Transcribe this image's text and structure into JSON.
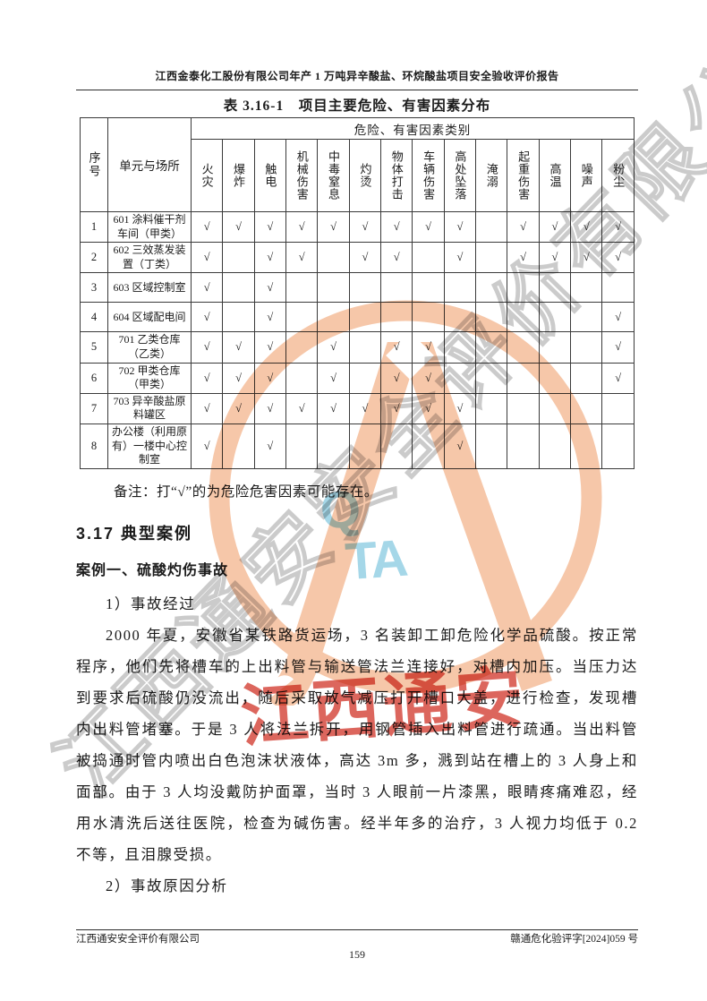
{
  "page": {
    "header_title": "江西金泰化工股份有限公司年产 1 万吨异辛酸盐、环烷酸盐项目安全验收评价报告",
    "footer_company": "江西通安安全评价有限公司",
    "footer_doc_number": "赣通危化验评字[2024]059 号",
    "page_number": "159"
  },
  "table": {
    "title": "表 3.16-1　项目主要危险、有害因素分布",
    "col_no_label": "序号",
    "col_unit_label": "单元与场所",
    "group_header": "危险、有害因素类别",
    "check_mark": "√",
    "hazard_columns": [
      "火灾",
      "爆炸",
      "触电",
      "机械伤害",
      "中毒窒息",
      "灼烫",
      "物体打击",
      "车辆伤害",
      "高处坠落",
      "淹溺",
      "起重伤害",
      "高温",
      "噪声",
      "粉尘"
    ],
    "rows": [
      {
        "no": "1",
        "unit": "601 涂料催干剂车间（甲类）",
        "checks": [
          1,
          1,
          1,
          1,
          1,
          1,
          1,
          1,
          1,
          0,
          1,
          1,
          1,
          1
        ]
      },
      {
        "no": "2",
        "unit": "602 三效蒸发装置（丁类）",
        "checks": [
          1,
          0,
          1,
          1,
          0,
          1,
          1,
          0,
          1,
          0,
          1,
          1,
          1,
          1
        ]
      },
      {
        "no": "3",
        "unit": "603 区域控制室",
        "checks": [
          1,
          0,
          1,
          0,
          0,
          0,
          0,
          0,
          0,
          0,
          0,
          0,
          0,
          0
        ]
      },
      {
        "no": "4",
        "unit": "604 区域配电间",
        "checks": [
          1,
          0,
          1,
          0,
          0,
          0,
          0,
          0,
          0,
          0,
          0,
          0,
          0,
          1
        ]
      },
      {
        "no": "5",
        "unit": "701 乙类仓库（乙类）",
        "checks": [
          1,
          1,
          1,
          0,
          1,
          0,
          1,
          1,
          0,
          0,
          0,
          0,
          0,
          1
        ]
      },
      {
        "no": "6",
        "unit": "702 甲类仓库（甲类）",
        "checks": [
          1,
          1,
          1,
          0,
          1,
          0,
          1,
          1,
          0,
          0,
          0,
          0,
          0,
          1
        ]
      },
      {
        "no": "7",
        "unit": "703 异辛酸盐原料罐区",
        "checks": [
          1,
          1,
          1,
          1,
          1,
          1,
          1,
          1,
          1,
          0,
          0,
          0,
          0,
          0
        ]
      },
      {
        "no": "8",
        "unit": "办公楼（利用原有）一楼中心控制室",
        "checks": [
          1,
          0,
          1,
          0,
          0,
          0,
          0,
          0,
          1,
          0,
          0,
          0,
          0,
          0
        ]
      }
    ],
    "note": "备注：打“√”的为危险危害因素可能存在。"
  },
  "section": {
    "heading": "3.17 典型案例",
    "case_title": "案例一、硫酸灼伤事故",
    "step1_label": "1）事故经过",
    "paragraph": "2000 年夏，安徽省某铁路货运场，3 名装卸工卸危险化学品硫酸。按正常程序，他们先将槽车的上出料管与输送管法兰连接好，对槽内加压。当压力达到要求后硫酸仍没流出，随后采取放气减压打开槽口大盖，进行检查，发现槽内出料管堵塞。于是 3 人将法兰拆开，用钢管插入出料管进行疏通。当出料管被捣通时管内喷出白色泡沫状液体，高达 3m 多，溅到站在槽上的 3 人身上和面部。由于 3 人均没戴防护面罩，当时 3 人眼前一片漆黑，眼睛疼痛难忍，经用水清洗后送往医院，检查为碱伤害。经半年多的治疗，3 人视力均低于 0.2 不等，且泪腺受损。",
    "step2_label": "2）事故原因分析"
  },
  "watermark": {
    "red_text": "江西通安",
    "gray_text": "江西通安安全评价有限公司",
    "cyan_letter_q": "Q",
    "cyan_letters_ta": "TA",
    "logo_color": "#f6c7a9",
    "cyan_color": "#a5d7e8",
    "red_color": "#d23b30"
  }
}
